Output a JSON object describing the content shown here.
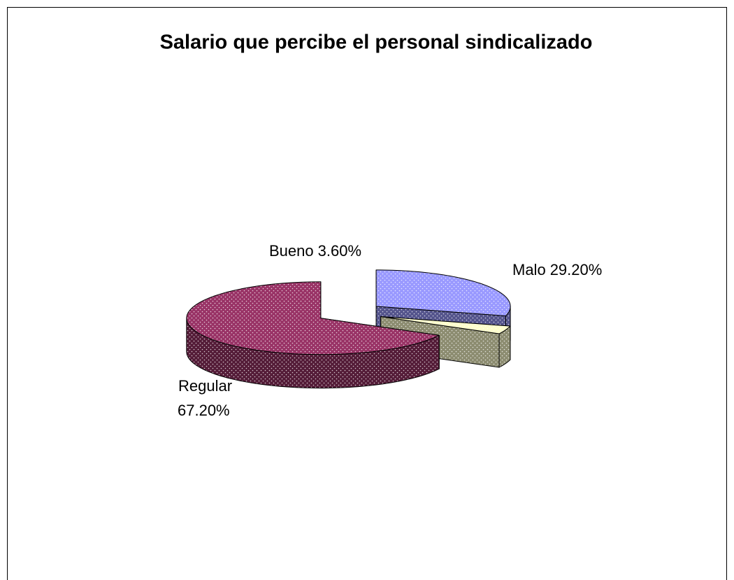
{
  "chart_data": {
    "type": "pie",
    "title": "Salario que percibe el personal sindicalizado",
    "categories": [
      "Malo",
      "Bueno",
      "Regular"
    ],
    "values": [
      29.2,
      3.6,
      67.2
    ],
    "value_labels": [
      "29.20%",
      "3.60%",
      "67.20%"
    ],
    "colors": [
      "#9999ff",
      "#ffffcc",
      "#993366"
    ],
    "three_d": true,
    "exploded": true
  }
}
